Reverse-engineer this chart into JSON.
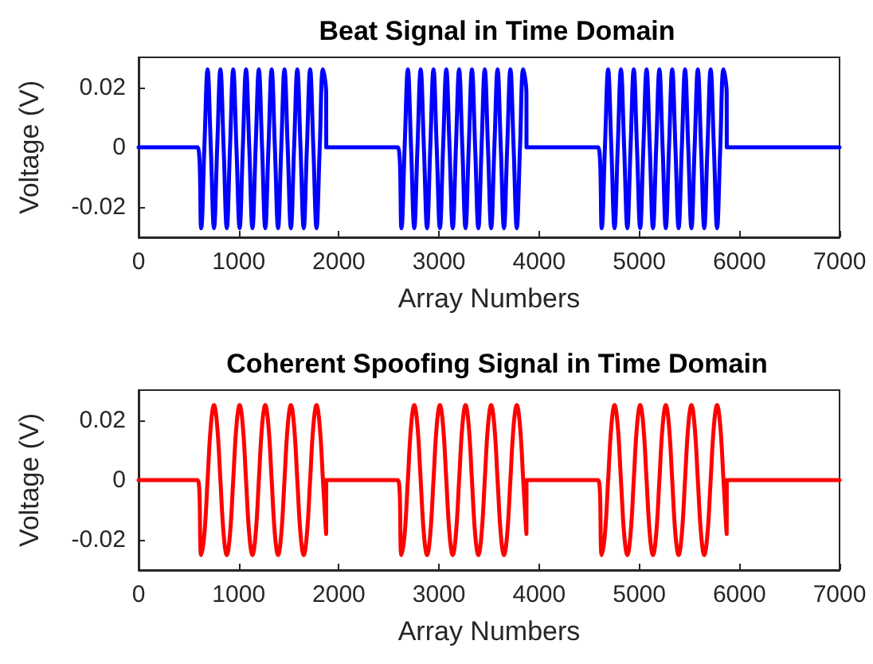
{
  "chart_data": [
    {
      "type": "line",
      "title": "Beat Signal in Time Domain",
      "xlabel": "Array Numbers",
      "ylabel": "Voltage (V)",
      "xlim": [
        0,
        7000
      ],
      "xticks": [
        0,
        1000,
        2000,
        3000,
        4000,
        5000,
        6000,
        7000
      ],
      "ylim": [
        -0.03,
        0.03
      ],
      "yticks": [
        -0.02,
        0,
        0.02
      ],
      "grid": false,
      "x": [
        0,
        590,
        625,
        657,
        689,
        721,
        753,
        785,
        817,
        849,
        881,
        913,
        945,
        977,
        1009,
        1041,
        1073,
        1105,
        1137,
        1169,
        1201,
        1233,
        1265,
        1297,
        1329,
        1361,
        1393,
        1425,
        1457,
        1489,
        1521,
        1553,
        1585,
        1617,
        1649,
        1681,
        1713,
        1745,
        1777,
        1809,
        1841,
        1873,
        1874,
        2590,
        2625,
        2657,
        2689,
        2721,
        2753,
        2785,
        2817,
        2849,
        2881,
        2913,
        2945,
        2977,
        3009,
        3041,
        3073,
        3105,
        3137,
        3169,
        3201,
        3233,
        3265,
        3297,
        3329,
        3361,
        3393,
        3425,
        3457,
        3489,
        3521,
        3553,
        3585,
        3617,
        3649,
        3681,
        3713,
        3745,
        3777,
        3809,
        3841,
        3873,
        3874,
        4590,
        4625,
        4657,
        4689,
        4721,
        4753,
        4785,
        4817,
        4849,
        4881,
        4913,
        4945,
        4977,
        5009,
        5041,
        5073,
        5105,
        5137,
        5169,
        5201,
        5233,
        5265,
        5297,
        5329,
        5361,
        5393,
        5425,
        5457,
        5489,
        5521,
        5553,
        5585,
        5617,
        5649,
        5681,
        5713,
        5745,
        5777,
        5809,
        5841,
        5873,
        5874,
        7000
      ],
      "series": [
        {
          "color": "#0000ff",
          "values": [
            0,
            0,
            -0.027,
            0,
            0.026,
            0,
            -0.027,
            0,
            0.026,
            0,
            -0.027,
            0,
            0.026,
            0,
            -0.027,
            0,
            0.026,
            0,
            -0.027,
            0,
            0.026,
            0,
            -0.027,
            0,
            0.026,
            0,
            -0.027,
            0,
            0.026,
            0,
            -0.027,
            0,
            0.026,
            0,
            -0.027,
            0,
            0.026,
            0,
            -0.027,
            0,
            0.026,
            0.018,
            0,
            0,
            -0.027,
            0,
            0.026,
            0,
            -0.027,
            0,
            0.026,
            0,
            -0.027,
            0,
            0.026,
            0,
            -0.027,
            0,
            0.026,
            0,
            -0.027,
            0,
            0.026,
            0,
            -0.027,
            0,
            0.026,
            0,
            -0.027,
            0,
            0.026,
            0,
            -0.027,
            0,
            0.026,
            0,
            -0.027,
            0,
            0.026,
            0,
            -0.027,
            0,
            0.026,
            0.018,
            0,
            0,
            -0.027,
            0,
            0.026,
            0,
            -0.027,
            0,
            0.026,
            0,
            -0.027,
            0,
            0.026,
            0,
            -0.027,
            0,
            0.026,
            0,
            -0.027,
            0,
            0.026,
            0,
            -0.027,
            0,
            0.026,
            0,
            -0.027,
            0,
            0.026,
            0,
            -0.027,
            0,
            0.026,
            0,
            -0.027,
            0,
            0.026,
            0,
            -0.027,
            0,
            0.026,
            0.018,
            0,
            0
          ]
        }
      ]
    },
    {
      "type": "line",
      "title": "Coherent Spoofing Signal in Time Domain",
      "xlabel": "Array Numbers",
      "ylabel": "Voltage (V)",
      "xlim": [
        0,
        7000
      ],
      "xticks": [
        0,
        1000,
        2000,
        3000,
        4000,
        5000,
        6000,
        7000
      ],
      "ylim": [
        -0.03,
        0.03
      ],
      "yticks": [
        -0.02,
        0,
        0.02
      ],
      "grid": false,
      "x": [
        0,
        590,
        625,
        657,
        689,
        721,
        753,
        785,
        817,
        849,
        881,
        913,
        945,
        977,
        1009,
        1041,
        1073,
        1105,
        1137,
        1169,
        1201,
        1233,
        1265,
        1297,
        1329,
        1361,
        1393,
        1425,
        1457,
        1489,
        1521,
        1553,
        1585,
        1617,
        1649,
        1681,
        1713,
        1745,
        1777,
        1809,
        1841,
        1873,
        1874,
        2590,
        2625,
        2657,
        2689,
        2721,
        2753,
        2785,
        2817,
        2849,
        2881,
        2913,
        2945,
        2977,
        3009,
        3041,
        3073,
        3105,
        3137,
        3169,
        3201,
        3233,
        3265,
        3297,
        3329,
        3361,
        3393,
        3425,
        3457,
        3489,
        3521,
        3553,
        3585,
        3617,
        3649,
        3681,
        3713,
        3745,
        3777,
        3809,
        3841,
        3873,
        3874,
        4590,
        4625,
        4657,
        4689,
        4721,
        4753,
        4785,
        4817,
        4849,
        4881,
        4913,
        4945,
        4977,
        5009,
        5041,
        5073,
        5105,
        5137,
        5169,
        5201,
        5233,
        5265,
        5297,
        5329,
        5361,
        5393,
        5425,
        5457,
        5489,
        5521,
        5553,
        5585,
        5617,
        5649,
        5681,
        5713,
        5745,
        5777,
        5809,
        5841,
        5873,
        5874,
        7000
      ],
      "series": [
        {
          "color": "#ff0000",
          "values": [
            0,
            0,
            -0.025,
            -0.018,
            0,
            0.018,
            0.025,
            0.018,
            0,
            -0.018,
            -0.025,
            -0.018,
            0,
            0.018,
            0.025,
            0.018,
            0,
            -0.018,
            -0.025,
            -0.018,
            0,
            0.018,
            0.025,
            0.018,
            0,
            -0.018,
            -0.025,
            -0.018,
            0,
            0.018,
            0.025,
            0.018,
            0,
            -0.018,
            -0.025,
            -0.018,
            0,
            0.018,
            0.025,
            0.018,
            0,
            -0.018,
            0,
            0,
            -0.025,
            -0.018,
            0,
            0.018,
            0.025,
            0.018,
            0,
            -0.018,
            -0.025,
            -0.018,
            0,
            0.018,
            0.025,
            0.018,
            0,
            -0.018,
            -0.025,
            -0.018,
            0,
            0.018,
            0.025,
            0.018,
            0,
            -0.018,
            -0.025,
            -0.018,
            0,
            0.018,
            0.025,
            0.018,
            0,
            -0.018,
            -0.025,
            -0.018,
            0,
            0.018,
            0.025,
            0.018,
            0,
            -0.018,
            0,
            0,
            -0.025,
            -0.018,
            0,
            0.018,
            0.025,
            0.018,
            0,
            -0.018,
            -0.025,
            -0.018,
            0,
            0.018,
            0.025,
            0.018,
            0,
            -0.018,
            -0.025,
            -0.018,
            0,
            0.018,
            0.025,
            0.018,
            0,
            -0.018,
            -0.025,
            -0.018,
            0,
            0.018,
            0.025,
            0.018,
            0,
            -0.018,
            -0.025,
            -0.018,
            0,
            0.018,
            0.025,
            0.018,
            0,
            -0.018,
            0,
            0
          ]
        }
      ]
    }
  ]
}
